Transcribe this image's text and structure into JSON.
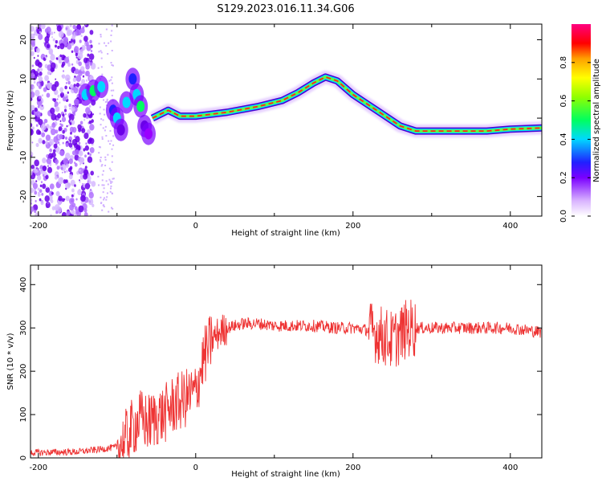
{
  "title": "S129.2023.016.11.34.G06",
  "chart_data": [
    {
      "type": "heatmap",
      "xlabel": "Height of straight line (km)",
      "ylabel": "Frequency (Hz)",
      "xlim": [
        -210,
        440
      ],
      "ylim": [
        -25,
        24
      ],
      "xticks": [
        -200,
        0,
        200,
        400
      ],
      "yticks": [
        -20,
        -10,
        0,
        10,
        20
      ],
      "ridge": {
        "x": [
          -55,
          -35,
          -20,
          0,
          40,
          80,
          110,
          130,
          150,
          165,
          180,
          200,
          230,
          260,
          280,
          300,
          330,
          370,
          400,
          440
        ],
        "y": [
          0,
          2,
          0.5,
          0.5,
          1.5,
          3,
          4.5,
          6.5,
          9,
          10.5,
          9.5,
          6,
          2,
          -2,
          -3.3,
          -3.3,
          -3.3,
          -3.3,
          -2.8,
          -2.5
        ]
      },
      "colorbar": {
        "label": "Normalized spectral amplitude",
        "ticks": [
          "0.0",
          "0.2",
          "0.4",
          "0.6",
          "0.8"
        ],
        "colormap": [
          "#ffffff",
          "#9a00ff",
          "#2020ff",
          "#00d8ff",
          "#00ff60",
          "#90ff00",
          "#ffff00",
          "#ffa000",
          "#ff0000",
          "#ff0080"
        ]
      },
      "grid": false
    },
    {
      "type": "line",
      "xlabel": "Height of straight line (km)",
      "ylabel": "SNR (10 * v/v)",
      "xlim": [
        -210,
        440
      ],
      "ylim": [
        0,
        445
      ],
      "xticks": [
        -200,
        0,
        200,
        400
      ],
      "yticks": [
        0,
        100,
        200,
        300,
        400
      ],
      "color": "#ee3333",
      "series": [
        {
          "x": [
            -210,
            -150,
            -120,
            -100,
            -90,
            -80,
            -70,
            -60,
            -50,
            -40,
            -30,
            -20,
            -10,
            0,
            10,
            20,
            30,
            40,
            60,
            80,
            100,
            150,
            180,
            200,
            220,
            240,
            250,
            260,
            270,
            280,
            300,
            350,
            400,
            440
          ],
          "y": [
            12,
            14,
            20,
            25,
            40,
            70,
            90,
            80,
            95,
            100,
            120,
            130,
            140,
            150,
            230,
            270,
            290,
            300,
            310,
            310,
            305,
            305,
            300,
            300,
            295,
            280,
            270,
            285,
            300,
            300,
            300,
            300,
            300,
            290
          ]
        }
      ],
      "grid": false
    }
  ]
}
